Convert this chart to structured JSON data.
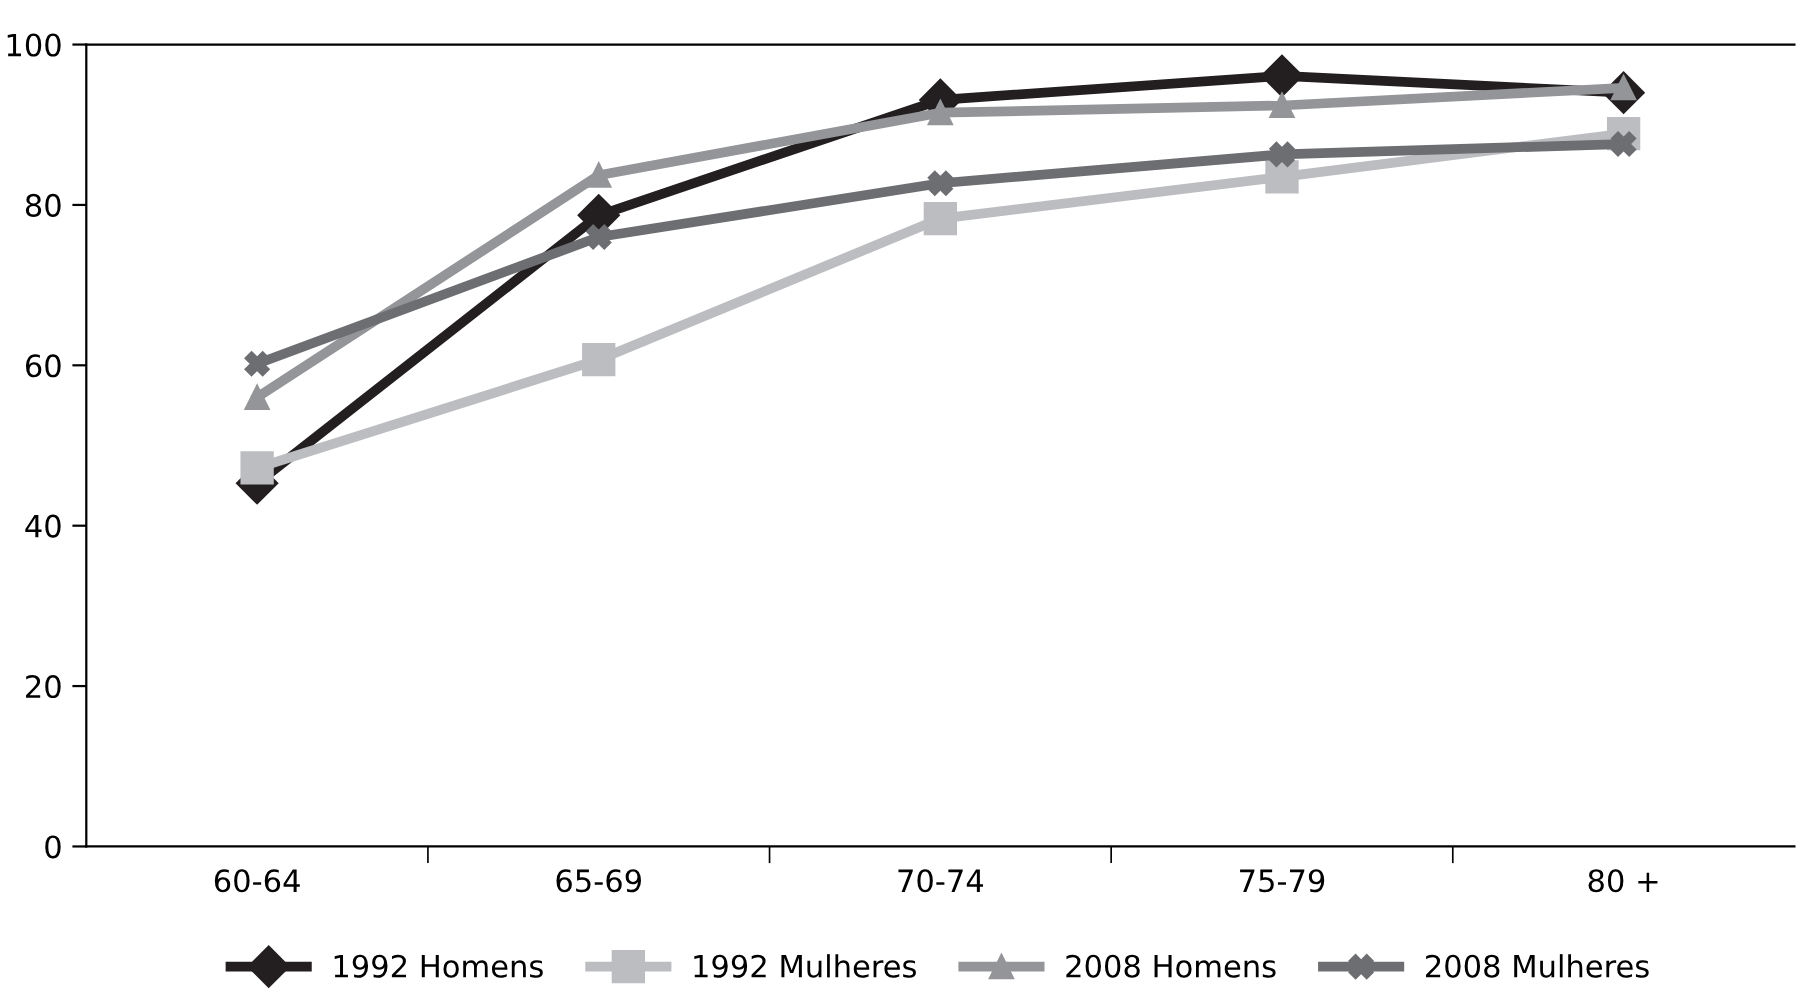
{
  "chart_data": {
    "type": "line",
    "categories": [
      "60-64",
      "65-69",
      "70-74",
      "75-79",
      "80 +"
    ],
    "series": [
      {
        "name": "1992 Homens",
        "color": "#231f20",
        "marker": "diamond",
        "values": [
          45.3,
          78.7,
          93.1,
          96.1,
          94.0
        ]
      },
      {
        "name": "1992 Mulheres",
        "color": "#bcbdc0",
        "marker": "square",
        "values": [
          47.2,
          60.7,
          78.3,
          83.5,
          88.9
        ]
      },
      {
        "name": "2008 Homens",
        "color": "#939598",
        "marker": "triangle",
        "values": [
          56.0,
          83.7,
          91.5,
          92.4,
          94.6
        ]
      },
      {
        "name": "2008 Mulheres",
        "color": "#6d6e71",
        "marker": "cross",
        "values": [
          60.2,
          76.0,
          82.7,
          86.3,
          87.6
        ]
      }
    ],
    "ylim": [
      0,
      100
    ],
    "yticks": [
      0,
      20,
      40,
      60,
      80,
      100
    ],
    "grid": false,
    "legend": "bottom",
    "line_style": "solid"
  }
}
